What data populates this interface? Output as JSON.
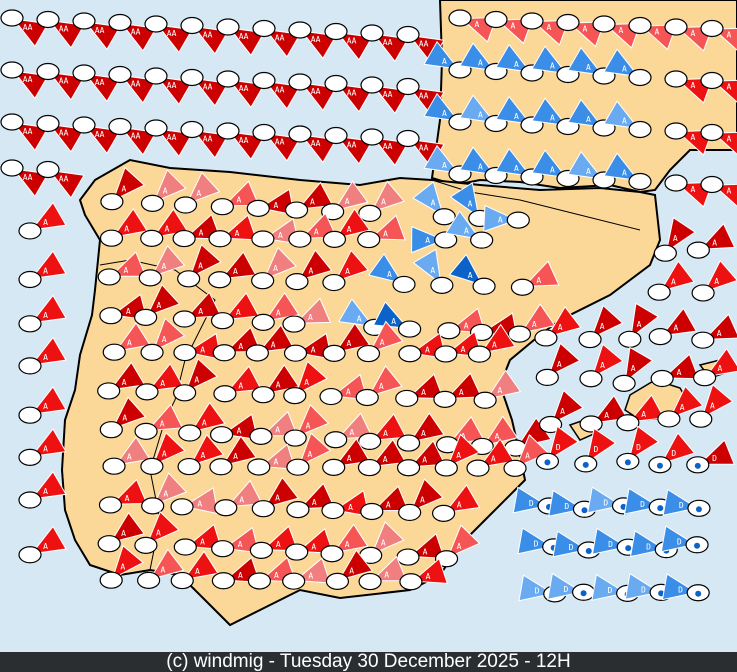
{
  "footer": {
    "credit": "(c) windmig - Tuesday 30 December 2025 - 12H"
  },
  "colors": {
    "sea": "#d6e8f3",
    "land": "#fcd898",
    "border": "#000000",
    "strong_red": "#cc0000",
    "red": "#ee1111",
    "light_red": "#f55555",
    "pale_red": "#f08080",
    "blue": "#3a8ee8",
    "dark_blue": "#0b63c9",
    "light_blue": "#6aaaf0",
    "footer_bg": "#2b2e31"
  },
  "symbol_labels": {
    "strong_wind": "AA",
    "wind": "A",
    "depression": "D"
  },
  "station_icon": "white-ellipse",
  "rain_icon": "raindrop-icon"
}
